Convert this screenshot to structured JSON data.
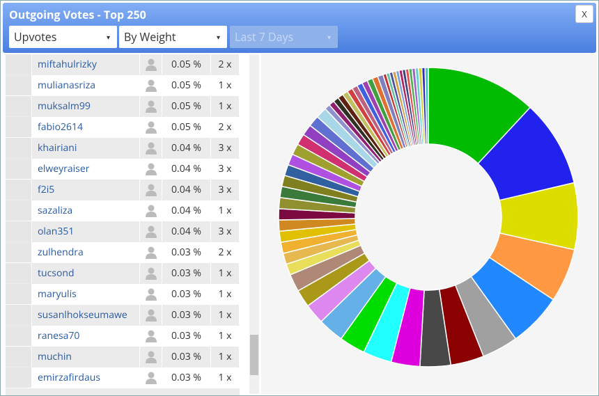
{
  "header": {
    "title": "Outgoing Votes - Top 250",
    "close": "X",
    "filters": [
      "Upvotes",
      "By Weight",
      "Last 7 Days"
    ]
  },
  "table": {
    "rows": [
      [
        "miftahulrizky",
        "0.05 %",
        "2 x"
      ],
      [
        "mulianasriza",
        "0.05 %",
        "1 x"
      ],
      [
        "muksalm99",
        "0.05 %",
        "1 x"
      ],
      [
        "fabio2614",
        "0.05 %",
        "2 x"
      ],
      [
        "khairiani",
        "0.04 %",
        "3 x"
      ],
      [
        "elweyraiser",
        "0.04 %",
        "3 x"
      ],
      [
        "f2i5",
        "0.04 %",
        "3 x"
      ],
      [
        "sazaliza",
        "0.04 %",
        "1 x"
      ],
      [
        "olan351",
        "0.04 %",
        "3 x"
      ],
      [
        "zulhendra",
        "0.03 %",
        "2 x"
      ],
      [
        "tucsond",
        "0.03 %",
        "1 x"
      ],
      [
        "maryulis",
        "0.03 %",
        "1 x"
      ],
      [
        "susanlhokseumawe",
        "0.03 %",
        "1 x"
      ],
      [
        "ranesa70",
        "0.03 %",
        "1 x"
      ],
      [
        "muchin",
        "0.03 %",
        "1 x"
      ],
      [
        "emirzafirdaus",
        "0.03 %",
        "1 x"
      ]
    ]
  },
  "chart_data": {
    "type": "donut",
    "values": [
      11.9,
      9.4,
      7.2,
      5.8,
      5.8,
      3.9,
      3.6,
      3.3,
      3.1,
      3.1,
      2.8,
      2.8,
      2.2,
      1.9,
      1.9,
      1.2,
      1.2,
      1.2,
      1.2,
      1.2,
      1.2,
      1.2,
      1.2,
      1.2,
      1.2,
      1.2,
      1.2,
      1.2,
      1.2,
      1.2,
      1.2,
      0.6,
      0.6,
      0.6,
      0.6,
      0.6,
      0.6,
      0.6,
      0.6,
      0.6,
      0.6,
      0.6,
      0.6,
      0.35,
      0.35,
      0.35,
      0.35,
      0.35,
      0.35,
      0.35,
      0.35,
      0.35,
      0.35,
      0.35,
      0.35,
      0.35,
      0.35
    ],
    "colors": [
      "#00bb00",
      "#2222ee",
      "#dddd00",
      "#ff9944",
      "#2288ff",
      "#a0a0a0",
      "#8b0000",
      "#484848",
      "#dd00dd",
      "#22ffff",
      "#00dd00",
      "#66b0e8",
      "#dd88ee",
      "#aa9918",
      "#b08878",
      "#e8de5a",
      "#e8b850",
      "#f0b030",
      "#e0c000",
      "#d08820",
      "#7a0a40",
      "#909030",
      "#3a7a3a",
      "#808020",
      "#3060a0",
      "#b050e0",
      "#a0a030",
      "#d03070",
      "#9040c0",
      "#6070d0",
      "#a8d8e8",
      "#9090d0",
      "#902070",
      "#303020",
      "#602010",
      "#c0c060",
      "#d04040",
      "#c06080",
      "#4060e0",
      "#a040b0",
      "#40a040",
      "#e07030",
      "#8080c0",
      "#c03030",
      "#60c0a0",
      "#5050a0",
      "#d0a040",
      "#80a0e0",
      "#b02060",
      "#404080",
      "#e05050",
      "#50b050",
      "#a060d0",
      "#60d0d0",
      "#d0d040",
      "#3030c0",
      "#40c0c0"
    ]
  }
}
